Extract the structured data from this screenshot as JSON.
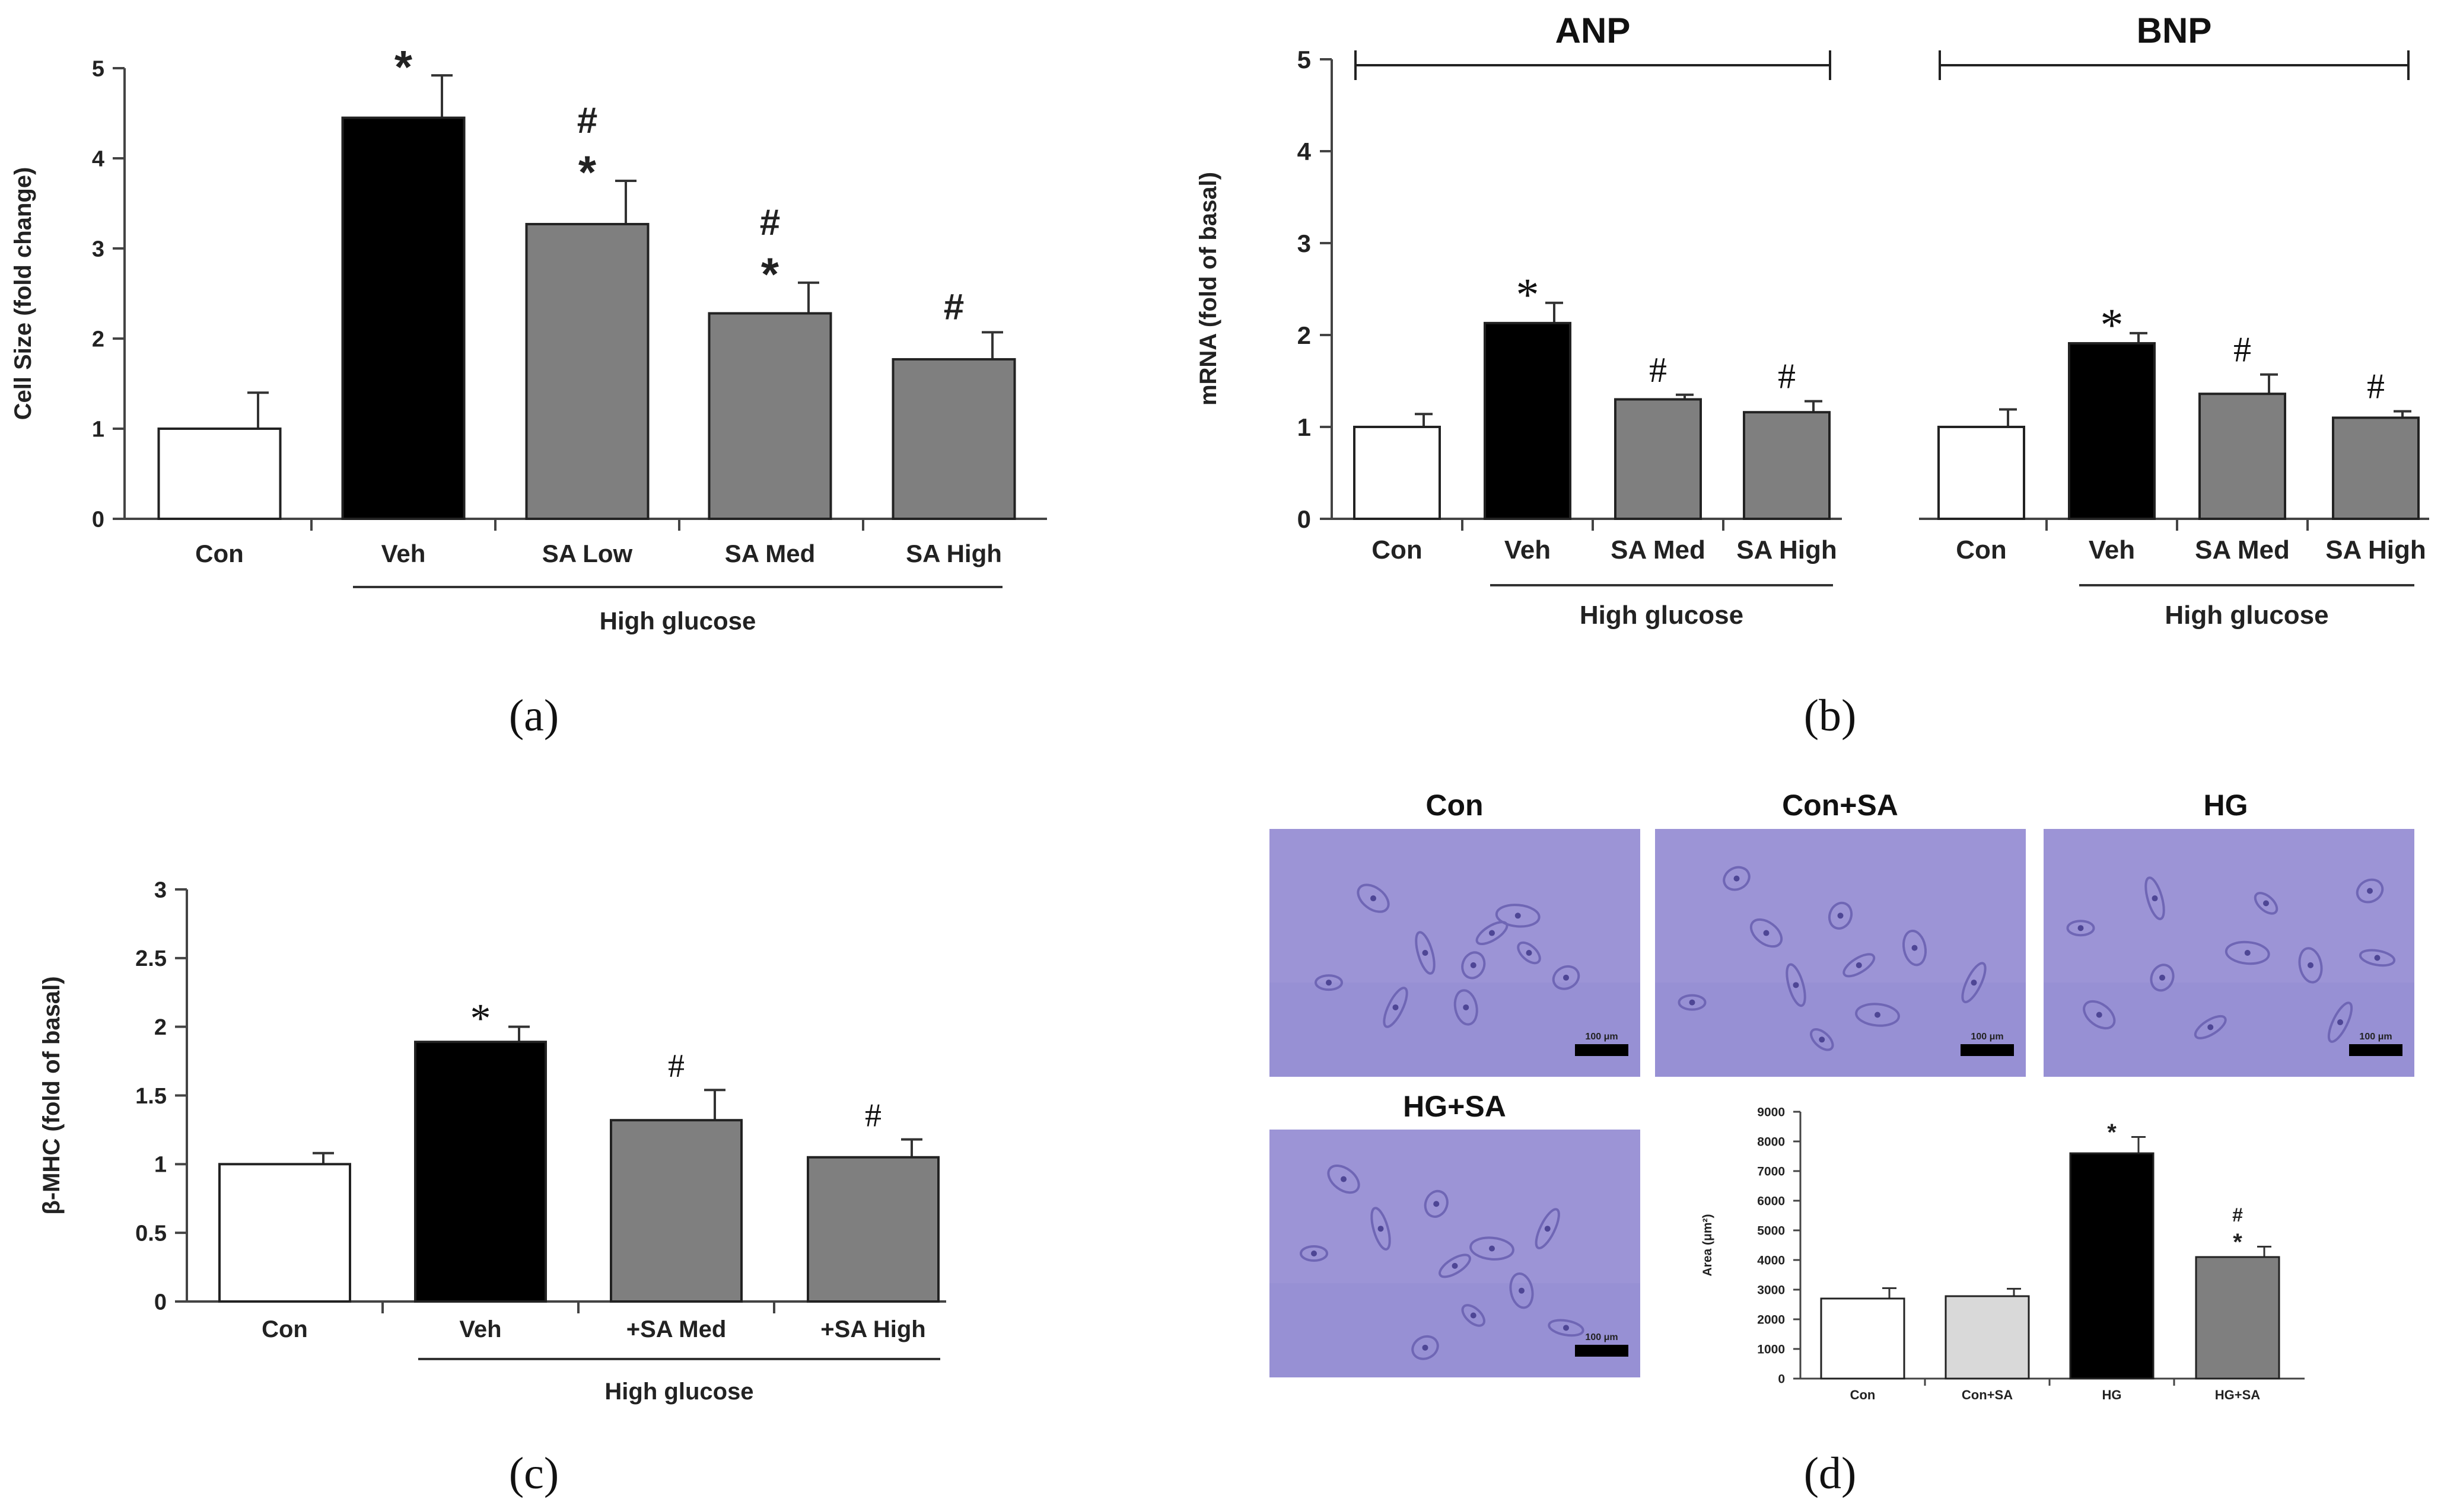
{
  "colors": {
    "white": "#ffffff",
    "black": "#000000",
    "gray": "#7f7f7f",
    "light_gray": "#d9d9d9",
    "micro_bg": "#9c94d6",
    "micro_cell": "#6f66b5"
  },
  "labels": {
    "a": "(a)",
    "b": "(b)",
    "c": "(c)",
    "d": "(d)"
  },
  "micro": {
    "titles": [
      "Con",
      "Con+SA",
      "HG",
      "HG+SA"
    ],
    "scale_label": "100 μm"
  },
  "chart_data": [
    {
      "id": "a",
      "type": "bar",
      "ylabel": "Cell Size (fold change)",
      "ylim": [
        0,
        5
      ],
      "yticks": [
        "0",
        "1",
        "2",
        "3",
        "4",
        "5"
      ],
      "categories": [
        "Con",
        "Veh",
        "SA Low",
        "SA Med",
        "SA High"
      ],
      "values": [
        1.0,
        4.45,
        3.27,
        2.28,
        1.77
      ],
      "errors": [
        0.4,
        0.47,
        0.48,
        0.34,
        0.3
      ],
      "colors": [
        "white",
        "black",
        "gray",
        "gray",
        "gray"
      ],
      "annotations": [
        "",
        "*",
        "#\n*",
        "#\n*",
        "#"
      ],
      "group_label": "High glucose",
      "group_span": [
        1,
        4
      ]
    },
    {
      "id": "b",
      "type": "bar",
      "ylabel": "mRNA (fold of basal)",
      "ylim": [
        0,
        5
      ],
      "yticks": [
        "0",
        "1",
        "2",
        "3",
        "4",
        "5"
      ],
      "panels": [
        {
          "title": "ANP",
          "categories": [
            "Con",
            "Veh",
            "SA Med",
            "SA High"
          ],
          "values": [
            1.0,
            2.13,
            1.3,
            1.16
          ],
          "errors": [
            0.14,
            0.22,
            0.05,
            0.12
          ],
          "colors": [
            "white",
            "black",
            "gray",
            "gray"
          ],
          "annotations": [
            "",
            "*",
            "#",
            "#"
          ],
          "group_label": "High glucose"
        },
        {
          "title": "BNP",
          "categories": [
            "Con",
            "Veh",
            "SA Med",
            "SA High"
          ],
          "values": [
            1.0,
            1.91,
            1.36,
            1.1
          ],
          "errors": [
            0.19,
            0.11,
            0.21,
            0.07
          ],
          "colors": [
            "white",
            "black",
            "gray",
            "gray"
          ],
          "annotations": [
            "",
            "*",
            "#",
            "#"
          ],
          "group_label": "High glucose"
        }
      ]
    },
    {
      "id": "c",
      "type": "bar",
      "ylabel": "β-MHC (fold of basal)",
      "ylim": [
        0,
        3
      ],
      "yticks": [
        "0",
        "0.5",
        "1",
        "1.5",
        "2",
        "2.5",
        "3"
      ],
      "categories": [
        "Con",
        "Veh",
        "+SA Med",
        "+SA High"
      ],
      "values": [
        1.0,
        1.89,
        1.32,
        1.05
      ],
      "errors": [
        0.08,
        0.11,
        0.22,
        0.13
      ],
      "colors": [
        "white",
        "black",
        "gray",
        "gray"
      ],
      "annotations": [
        "",
        "*",
        "#",
        "#"
      ],
      "group_label": "High glucose",
      "group_span": [
        1,
        3
      ]
    },
    {
      "id": "d",
      "type": "bar",
      "ylabel": "Area (μm²)",
      "ylim": [
        0,
        9000
      ],
      "yticks": [
        "0",
        "1000",
        "2000",
        "3000",
        "4000",
        "5000",
        "6000",
        "7000",
        "8000",
        "9000"
      ],
      "categories": [
        "Con",
        "Con+SA",
        "HG",
        "HG+SA"
      ],
      "values": [
        2700,
        2780,
        7600,
        4100
      ],
      "errors": [
        350,
        250,
        550,
        350
      ],
      "colors": [
        "white",
        "light_gray",
        "black",
        "gray"
      ],
      "annotations": [
        "",
        "",
        "*",
        "#\n*"
      ]
    }
  ]
}
